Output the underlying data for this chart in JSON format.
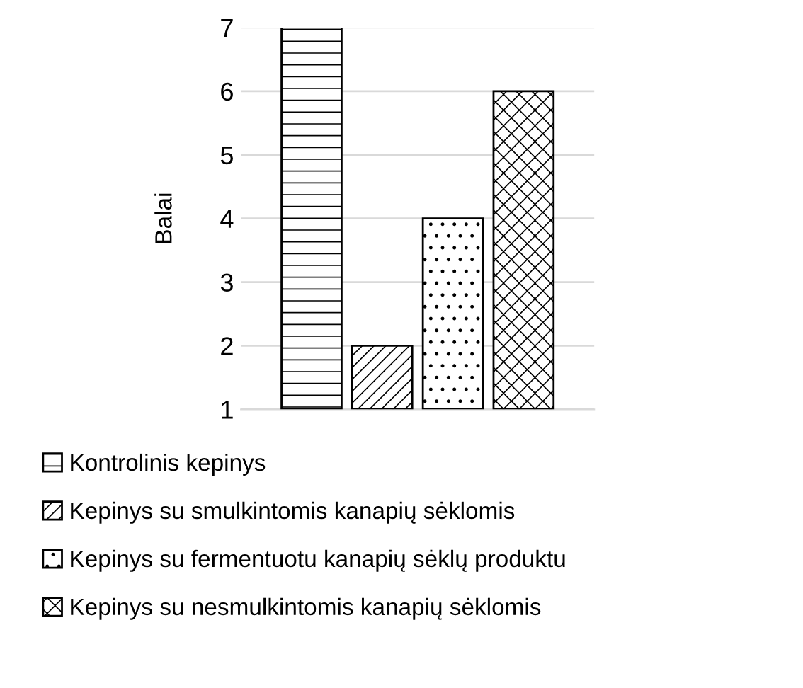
{
  "chart_data": {
    "type": "bar",
    "ylabel": "Balai",
    "categories": [
      null
    ],
    "series": [
      {
        "name": "Kontrolinis kepinys",
        "color": "#000000",
        "values": [
          7
        ]
      },
      {
        "name": "Kepinys su smulkintomis kanapių sėklomis",
        "color": "#000000",
        "values": [
          2
        ]
      },
      {
        "name": "Kepinys su fermentuotu kanapių sėklų produktu",
        "color": "#000000",
        "values": [
          4
        ]
      },
      {
        "name": "Kepinys su nesmulkintomis kanapių sėklomis",
        "color": "#000000",
        "values": [
          6
        ]
      }
    ],
    "ylim": [
      1,
      7
    ],
    "yticks": [
      1,
      2,
      3,
      4,
      5,
      6,
      7
    ],
    "grid": "y",
    "legend": "bottom"
  }
}
